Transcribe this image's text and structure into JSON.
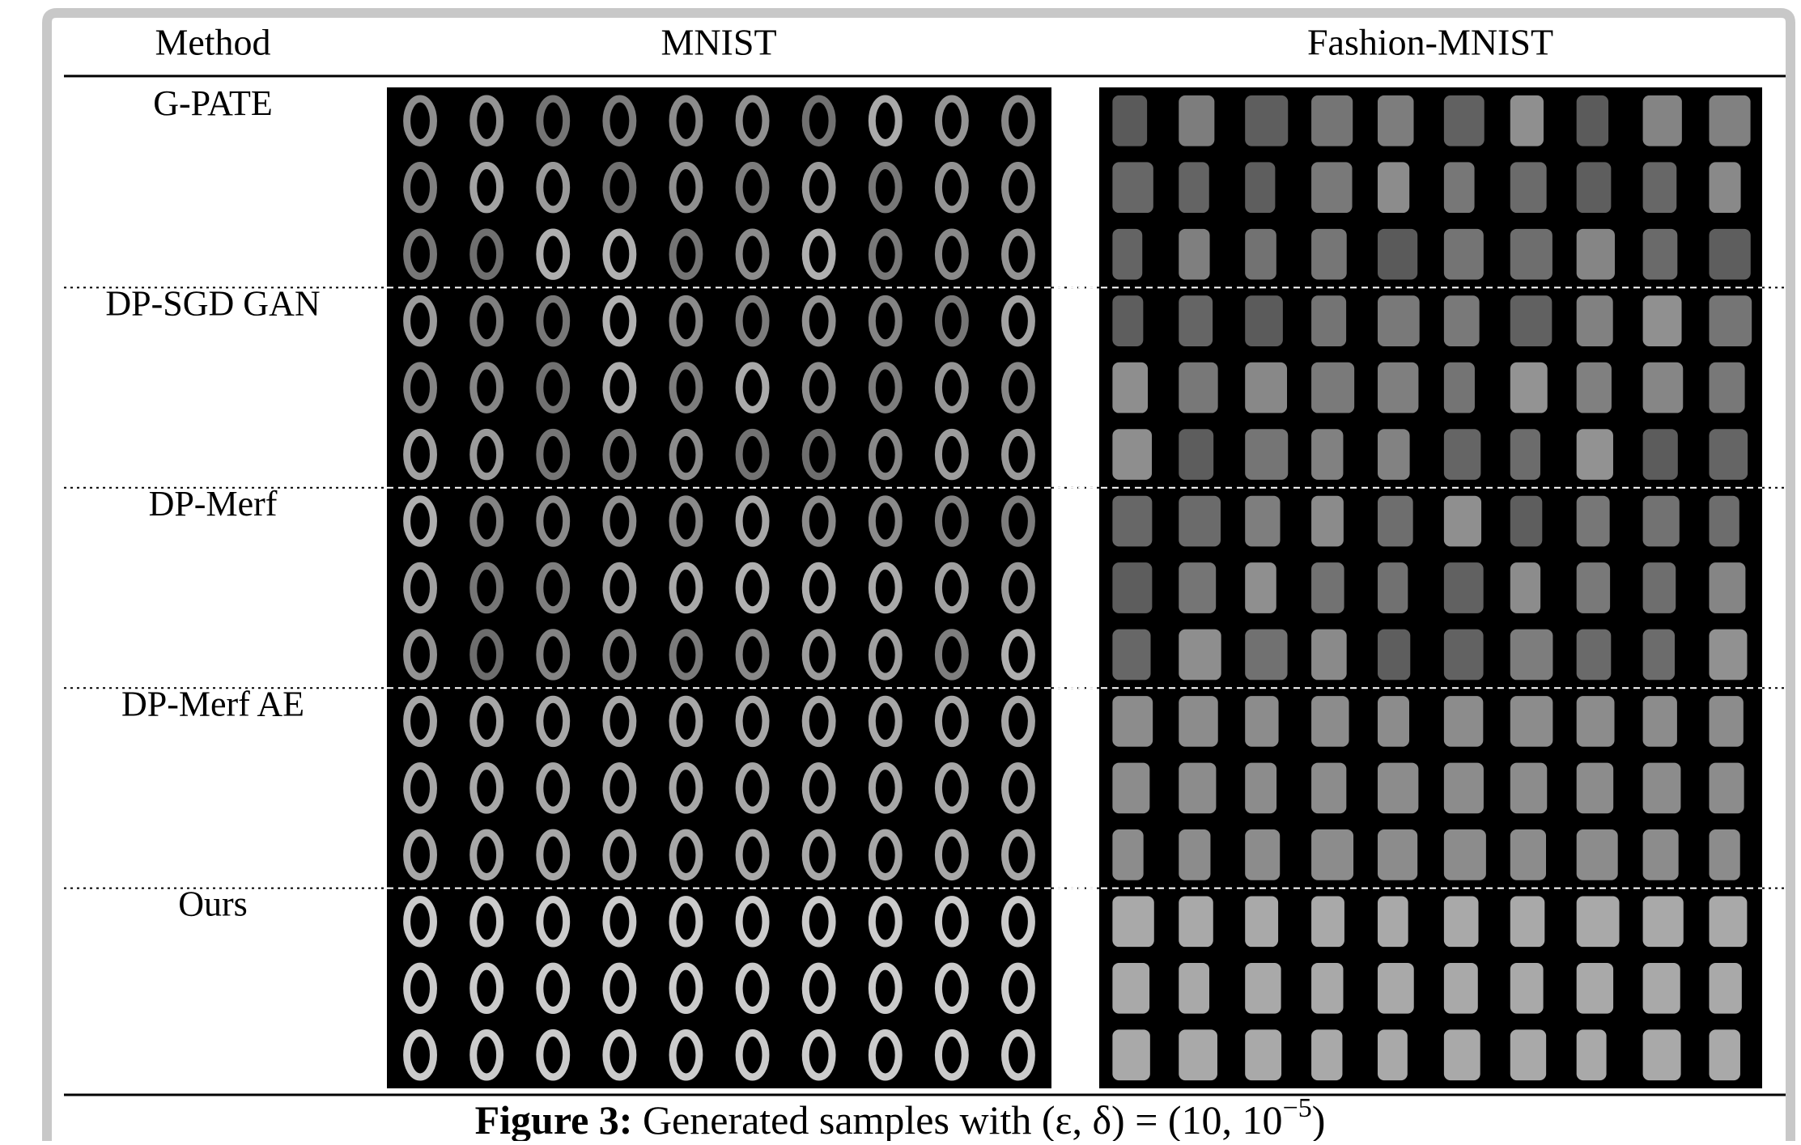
{
  "header": {
    "method": "Method",
    "mnist": "MNIST",
    "fashion": "Fashion-MNIST"
  },
  "rows": [
    "G-PATE",
    "DP-SGD GAN",
    "DP-Merf",
    "DP-Merf AE",
    "Ours"
  ],
  "caption": {
    "label": "Figure 3:",
    "text": "Generated samples with (ε, δ) = (10, 10",
    "superscript": "−5",
    "close": ")"
  }
}
